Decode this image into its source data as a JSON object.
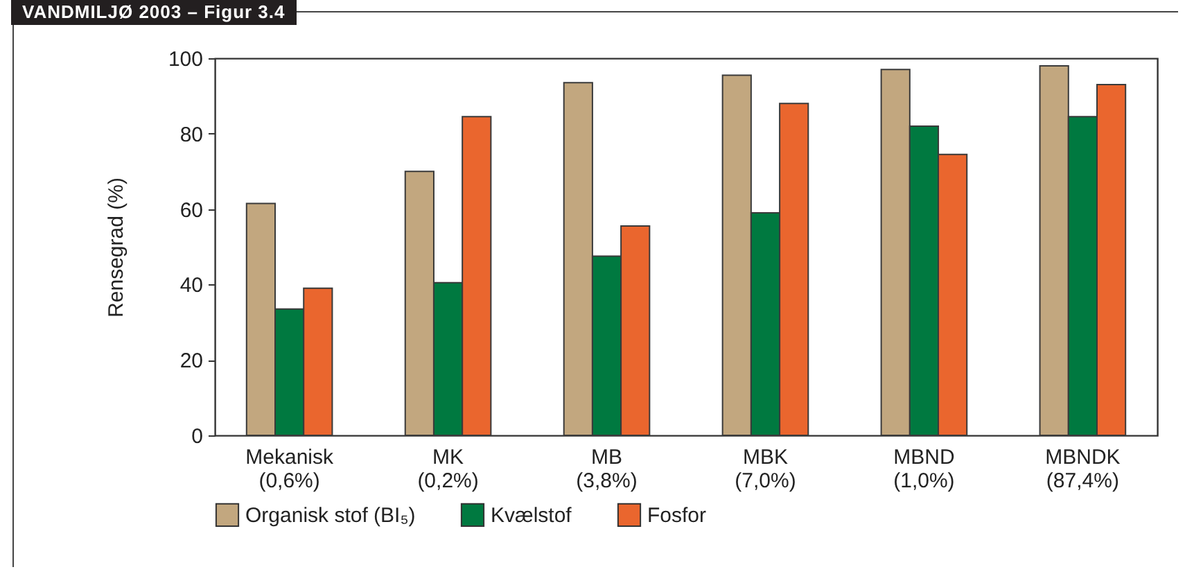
{
  "chart_data": {
    "type": "bar",
    "title": "VANDMILJØ 2003 – Figur 3.4",
    "ylabel": "Rensegrad (%)",
    "categories": [
      "Mekanisk\n(0,6%)",
      "MK\n(0,2%)",
      "MB\n(3,8%)",
      "MBK\n(7,0%)",
      "MBND\n(1,0%)",
      "MBNDK\n(87,4%)"
    ],
    "series": [
      {
        "name": "Organisk stof (BI₅)",
        "color": "#c2a77f",
        "values": [
          61.5,
          70,
          93.5,
          95.5,
          97,
          98
        ]
      },
      {
        "name": "Kvælstof",
        "color": "#007940",
        "values": [
          33.5,
          40.5,
          47.5,
          59,
          82,
          84.5
        ]
      },
      {
        "name": "Fosfor",
        "color": "#ea662e",
        "values": [
          39,
          84.5,
          55.5,
          88,
          74.5,
          93
        ]
      }
    ],
    "ylim": [
      0,
      100
    ],
    "yticks": [
      0,
      20,
      40,
      60,
      80,
      100
    ],
    "grid": false,
    "legend": "bottom left"
  }
}
